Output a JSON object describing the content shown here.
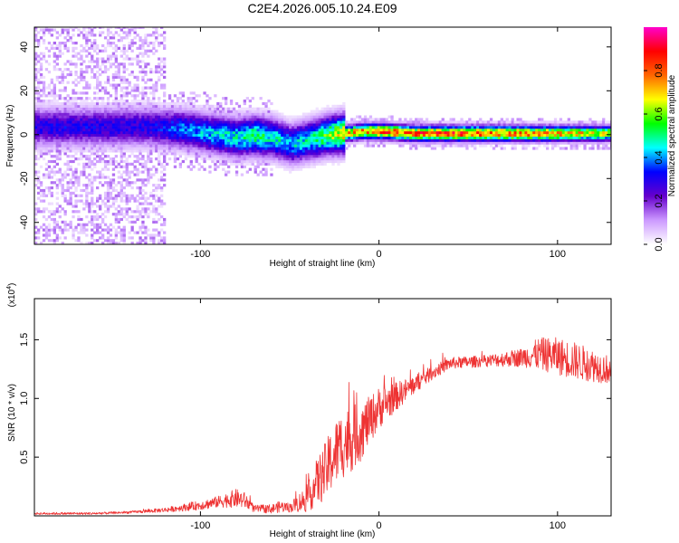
{
  "title": "C2E4.2026.005.10.24.E09",
  "chart_data": [
    {
      "type": "heatmap",
      "name": "spectrogram",
      "xlabel": "Height of straight line (km)",
      "ylabel": "Frequency (Hz)",
      "xlim": [
        -193,
        130
      ],
      "ylim": [
        -50,
        49
      ],
      "xticks": [
        -100,
        0,
        100
      ],
      "yticks": [
        -40,
        -20,
        0,
        20,
        40
      ],
      "colorbar": {
        "label": "Normalized spectral amplitude",
        "range": [
          0,
          1
        ],
        "ticks": [
          0.0,
          0.2,
          0.4,
          0.6,
          0.8
        ],
        "colors": [
          "#ffffff",
          "#cc99ff",
          "#6600cc",
          "#0000ff",
          "#00ffff",
          "#00ff00",
          "#ffff00",
          "#ff6600",
          "#ff0000",
          "#ff00cc"
        ]
      },
      "ridge": {
        "x": [
          -130,
          -110,
          -95,
          -80,
          -70,
          -60,
          -50,
          -40,
          -30,
          -20,
          -10,
          0,
          20,
          50,
          80,
          100,
          130
        ],
        "frequency": [
          3,
          2,
          0,
          -2,
          -1,
          -2,
          -5,
          -3,
          -1,
          0,
          1,
          1,
          0,
          0,
          0,
          0,
          0
        ],
        "peak_amplitude": [
          0.35,
          0.45,
          0.5,
          0.55,
          0.6,
          0.55,
          0.5,
          0.55,
          0.65,
          0.8,
          0.9,
          0.95,
          0.95,
          0.95,
          0.9,
          0.85,
          0.75
        ]
      },
      "broadband_noise_region": [
        -193,
        -120
      ]
    },
    {
      "type": "line",
      "name": "snr",
      "xlabel": "Height of straight line (km)",
      "ylabel": "SNR (10 * v/v)",
      "y_multiplier_label": "(x10",
      "y_multiplier_exponent": "4",
      "y_multiplier_close": ")",
      "xlim": [
        -193,
        130
      ],
      "ylim": [
        0,
        1.85
      ],
      "xticks": [
        -100,
        0,
        100
      ],
      "yticks": [
        0.5,
        1.0,
        1.5
      ],
      "series": [
        {
          "name": "SNR",
          "color": "#ee3333",
          "envelope_x": [
            -193,
            -160,
            -140,
            -120,
            -100,
            -90,
            -80,
            -75,
            -70,
            -60,
            -55,
            -50,
            -45,
            -40,
            -35,
            -30,
            -25,
            -20,
            -15,
            -10,
            -5,
            0,
            10,
            20,
            30,
            40,
            60,
            80,
            90,
            100,
            110,
            120,
            130
          ],
          "envelope_y": [
            0.02,
            0.02,
            0.03,
            0.05,
            0.09,
            0.12,
            0.15,
            0.13,
            0.06,
            0.06,
            0.08,
            0.07,
            0.11,
            0.15,
            0.28,
            0.38,
            0.52,
            0.62,
            0.66,
            0.72,
            0.82,
            0.92,
            1.02,
            1.12,
            1.22,
            1.3,
            1.32,
            1.35,
            1.38,
            1.36,
            1.32,
            1.28,
            1.24
          ],
          "noise_amplitude": [
            0.01,
            0.01,
            0.01,
            0.02,
            0.04,
            0.05,
            0.08,
            0.07,
            0.03,
            0.04,
            0.05,
            0.04,
            0.08,
            0.12,
            0.2,
            0.25,
            0.28,
            0.3,
            0.28,
            0.25,
            0.2,
            0.18,
            0.12,
            0.08,
            0.06,
            0.05,
            0.05,
            0.08,
            0.14,
            0.16,
            0.16,
            0.14,
            0.12
          ]
        }
      ]
    }
  ]
}
